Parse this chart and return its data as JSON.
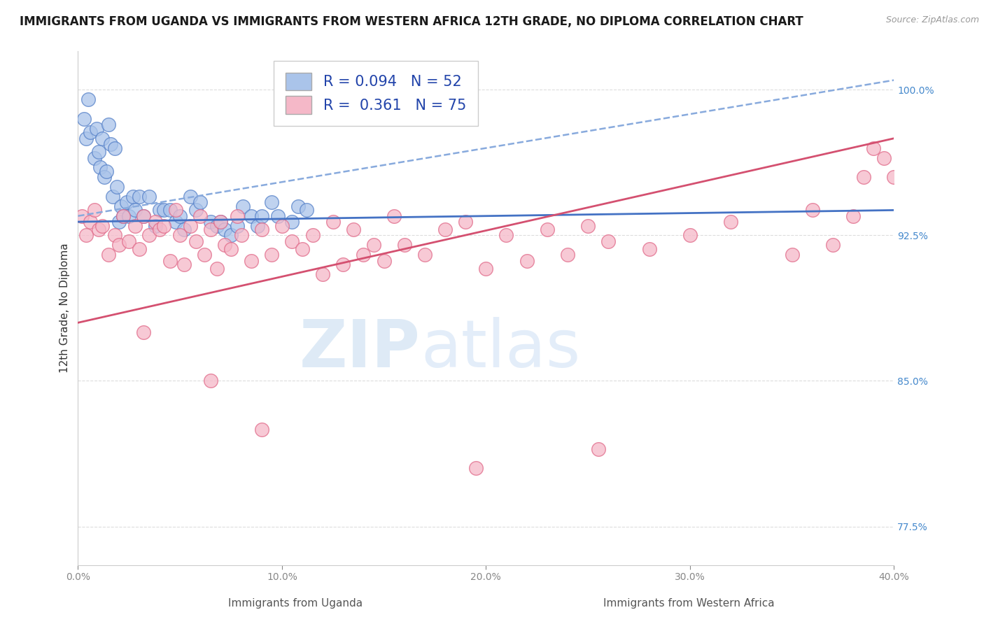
{
  "title": "IMMIGRANTS FROM UGANDA VS IMMIGRANTS FROM WESTERN AFRICA 12TH GRADE, NO DIPLOMA CORRELATION CHART",
  "source": "Source: ZipAtlas.com",
  "xlabel_left": "Immigrants from Uganda",
  "xlabel_right": "Immigrants from Western Africa",
  "ylabel": "12th Grade, No Diploma",
  "x_min": 0.0,
  "x_max": 40.0,
  "y_min": 75.5,
  "y_max": 102.0,
  "yticks": [
    77.5,
    85.0,
    92.5,
    100.0
  ],
  "xticks": [
    0.0,
    10.0,
    20.0,
    30.0,
    40.0
  ],
  "blue_R": 0.094,
  "blue_N": 52,
  "pink_R": 0.361,
  "pink_N": 75,
  "blue_color": "#aac4ea",
  "pink_color": "#f5b8c8",
  "blue_edge_color": "#5580c8",
  "pink_edge_color": "#e06888",
  "blue_line_color": "#4472c4",
  "pink_line_color": "#d45070",
  "blue_dash_color": "#88aadd",
  "watermark_zip": "ZIP",
  "watermark_atlas": "atlas",
  "blue_scatter_x": [
    0.3,
    0.4,
    0.5,
    0.6,
    0.8,
    0.9,
    1.0,
    1.1,
    1.2,
    1.3,
    1.4,
    1.5,
    1.6,
    1.7,
    1.8,
    1.9,
    2.0,
    2.1,
    2.2,
    2.4,
    2.5,
    2.7,
    2.8,
    3.0,
    3.2,
    3.5,
    3.8,
    4.0,
    4.2,
    4.5,
    4.8,
    5.0,
    5.2,
    5.5,
    5.8,
    6.0,
    6.5,
    6.8,
    7.0,
    7.2,
    7.5,
    7.8,
    8.1,
    8.5,
    8.8,
    9.0,
    9.5,
    9.8,
    10.5,
    10.8,
    11.2,
    14.5
  ],
  "blue_scatter_y": [
    98.5,
    97.5,
    99.5,
    97.8,
    96.5,
    98.0,
    96.8,
    96.0,
    97.5,
    95.5,
    95.8,
    98.2,
    97.2,
    94.5,
    97.0,
    95.0,
    93.2,
    94.0,
    93.5,
    94.2,
    93.5,
    94.5,
    93.8,
    94.5,
    93.5,
    94.5,
    93.0,
    93.8,
    93.8,
    93.8,
    93.2,
    93.5,
    92.8,
    94.5,
    93.8,
    94.2,
    93.2,
    93.0,
    93.2,
    92.8,
    92.5,
    93.0,
    94.0,
    93.5,
    93.0,
    93.5,
    94.2,
    93.5,
    93.2,
    94.0,
    93.8,
    99.0
  ],
  "pink_scatter_x": [
    0.2,
    0.4,
    0.6,
    0.8,
    1.0,
    1.2,
    1.5,
    1.8,
    2.0,
    2.2,
    2.5,
    2.8,
    3.0,
    3.2,
    3.5,
    3.8,
    4.0,
    4.2,
    4.5,
    4.8,
    5.0,
    5.2,
    5.5,
    5.8,
    6.0,
    6.2,
    6.5,
    6.8,
    7.0,
    7.2,
    7.5,
    7.8,
    8.0,
    8.5,
    9.0,
    9.5,
    10.0,
    10.5,
    11.0,
    11.5,
    12.0,
    12.5,
    13.0,
    13.5,
    14.0,
    14.5,
    15.0,
    15.5,
    16.0,
    17.0,
    18.0,
    19.0,
    20.0,
    21.0,
    22.0,
    23.0,
    24.0,
    25.0,
    26.0,
    28.0,
    30.0,
    32.0,
    35.0,
    36.0,
    37.0,
    38.0,
    38.5,
    39.0,
    39.5,
    40.0,
    3.2,
    6.5,
    9.0,
    19.5,
    25.5
  ],
  "pink_scatter_y": [
    93.5,
    92.5,
    93.2,
    93.8,
    92.8,
    93.0,
    91.5,
    92.5,
    92.0,
    93.5,
    92.2,
    93.0,
    91.8,
    93.5,
    92.5,
    93.2,
    92.8,
    93.0,
    91.2,
    93.8,
    92.5,
    91.0,
    93.0,
    92.2,
    93.5,
    91.5,
    92.8,
    90.8,
    93.2,
    92.0,
    91.8,
    93.5,
    92.5,
    91.2,
    92.8,
    91.5,
    93.0,
    92.2,
    91.8,
    92.5,
    90.5,
    93.2,
    91.0,
    92.8,
    91.5,
    92.0,
    91.2,
    93.5,
    92.0,
    91.5,
    92.8,
    93.2,
    90.8,
    92.5,
    91.2,
    92.8,
    91.5,
    93.0,
    92.2,
    91.8,
    92.5,
    93.2,
    91.5,
    93.8,
    92.0,
    93.5,
    95.5,
    97.0,
    96.5,
    95.5,
    87.5,
    85.0,
    82.5,
    80.5,
    81.5
  ],
  "title_fontsize": 12,
  "axis_label_fontsize": 11,
  "tick_fontsize": 10,
  "legend_fontsize": 15,
  "blue_line_y0": 93.2,
  "blue_line_y1": 93.8,
  "blue_dash_y0": 93.5,
  "blue_dash_y1": 100.5,
  "pink_line_y0": 88.0,
  "pink_line_y1": 97.5
}
